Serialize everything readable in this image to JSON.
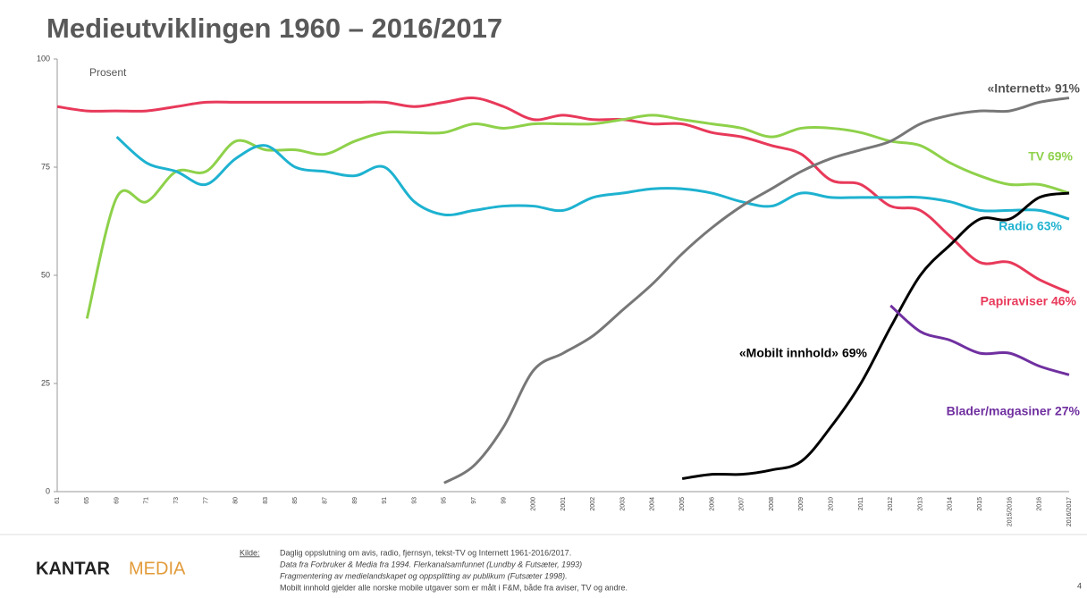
{
  "chart_data": {
    "type": "line",
    "title": "Medieutviklingen 1960 – 2016/2017",
    "y_label": "Prosent",
    "categories": [
      "61",
      "65",
      "69",
      "71",
      "73",
      "77",
      "80",
      "83",
      "85",
      "87",
      "89",
      "91",
      "93",
      "95",
      "97",
      "99",
      "2000",
      "2001",
      "2002",
      "2003",
      "2004",
      "2005",
      "2006",
      "2007",
      "2008",
      "2009",
      "2010",
      "2011",
      "2012",
      "2013",
      "2014",
      "2015",
      "2015/2016",
      "2016",
      "2016/2017"
    ],
    "ylim": [
      0,
      100
    ],
    "yticks": [
      0,
      25,
      50,
      75,
      100
    ],
    "series": [
      {
        "name": "Papiraviser  46%",
        "color": "#e8395a",
        "values": [
          89,
          88,
          88,
          88,
          89,
          90,
          90,
          90,
          90,
          90,
          90,
          90,
          89,
          90,
          91,
          89,
          86,
          87,
          86,
          86,
          85,
          85,
          83,
          82,
          80,
          78,
          72,
          71,
          66,
          65,
          59,
          53,
          53,
          49,
          46
        ]
      },
      {
        "name": "TV  69%",
        "color": "#8ed14a",
        "values": [
          null,
          40,
          68,
          67,
          74,
          74,
          81,
          79,
          79,
          78,
          81,
          83,
          83,
          83,
          85,
          84,
          85,
          85,
          85,
          86,
          87,
          86,
          85,
          84,
          82,
          84,
          84,
          83,
          81,
          80,
          76,
          73,
          71,
          71,
          69
        ]
      },
      {
        "name": "Radio 63%",
        "color": "#1eb2d0",
        "values": [
          null,
          null,
          82,
          76,
          74,
          71,
          77,
          80,
          75,
          74,
          73,
          75,
          67,
          64,
          65,
          66,
          66,
          65,
          68,
          69,
          70,
          70,
          69,
          67,
          66,
          69,
          68,
          68,
          68,
          68,
          67,
          65,
          65,
          65,
          63
        ]
      },
      {
        "name": "«Internett» 91%",
        "color": "#777777",
        "values": [
          null,
          null,
          null,
          null,
          null,
          null,
          null,
          null,
          null,
          null,
          null,
          null,
          null,
          2,
          6,
          15,
          28,
          32,
          36,
          42,
          48,
          55,
          61,
          66,
          70,
          74,
          77,
          79,
          81,
          85,
          87,
          88,
          88,
          90,
          91
        ]
      },
      {
        "name": "«Mobilt innhold» 69%",
        "color": "#000000",
        "values": [
          null,
          null,
          null,
          null,
          null,
          null,
          null,
          null,
          null,
          null,
          null,
          null,
          null,
          null,
          null,
          null,
          null,
          null,
          null,
          null,
          null,
          3,
          4,
          4,
          5,
          7,
          15,
          25,
          38,
          50,
          57,
          63,
          63,
          68,
          69
        ]
      },
      {
        "name": "Blader/magasiner 27%",
        "color": "#7030a0",
        "values": [
          null,
          null,
          null,
          null,
          null,
          null,
          null,
          null,
          null,
          null,
          null,
          null,
          null,
          null,
          null,
          null,
          null,
          null,
          null,
          null,
          null,
          null,
          null,
          null,
          null,
          null,
          null,
          null,
          43,
          37,
          35,
          32,
          32,
          29,
          27
        ]
      }
    ]
  },
  "footer": {
    "logo": [
      "KANTAR",
      "MEDIA"
    ],
    "source_label": "Kilde:",
    "source_lines": [
      "Daglig oppslutning om avis, radio, fjernsyn, tekst-TV og Internett 1961-2016/2017.",
      "Data fra Forbruker & Media fra 1994. Flerkanalsamfunnet (Lundby & Futsæter, 1993)",
      "Fragmentering av medielandskapet og oppsplitting av publikum (Futsæter 1998).",
      "Mobilt innhold gjelder alle norske mobile utgaver som er målt i F&M, både fra aviser, TV og andre."
    ],
    "page": "4"
  }
}
